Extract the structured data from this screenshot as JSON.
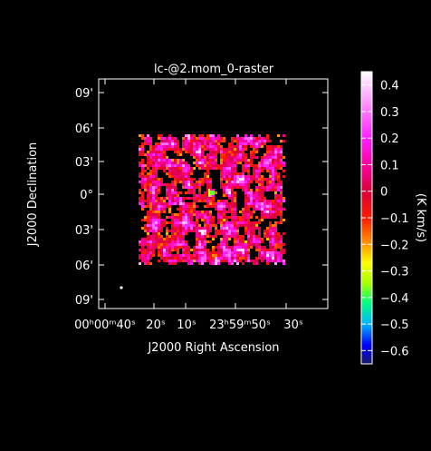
{
  "chart_data": {
    "type": "heatmap",
    "title": "lc-@2.mom_0-raster",
    "xlabel": "J2000 Right Ascension",
    "ylabel": "J2000 Declination",
    "x_ticks": [
      {
        "label": "00ʰ00ᵐ40ˢ"
      },
      {
        "label": "20ˢ"
      },
      {
        "label": "10ˢ"
      },
      {
        "label": "23ʰ59ᵐ50ˢ"
      },
      {
        "label": "30ˢ"
      }
    ],
    "y_ticks": [
      "09'",
      "06'",
      "03'",
      "0°",
      "03'",
      "06'",
      "09'"
    ],
    "colorbar": {
      "label": "(K km/s)",
      "range": [
        -0.65,
        0.45
      ],
      "ticks": [
        0.4,
        0.3,
        0.2,
        0.1,
        0,
        -0.1,
        -0.2,
        -0.3,
        -0.4,
        -0.5,
        -0.6
      ],
      "tick_labels": [
        "0.4",
        "0.3",
        "0.2",
        "0.1",
        "0",
        "−0.1",
        "−0.2",
        "−0.3",
        "−0.4",
        "−0.5",
        "−0.6"
      ],
      "colormap": [
        [
          -0.65,
          "#1a1a6a"
        ],
        [
          -0.58,
          "#0000ff"
        ],
        [
          -0.5,
          "#00b4ff"
        ],
        [
          -0.42,
          "#00ff80"
        ],
        [
          -0.35,
          "#a0ff00"
        ],
        [
          -0.27,
          "#ffff00"
        ],
        [
          -0.2,
          "#ff9900"
        ],
        [
          -0.1,
          "#ff1a00"
        ],
        [
          0.0,
          "#d8003a"
        ],
        [
          0.1,
          "#ff00a0"
        ],
        [
          0.2,
          "#ff22ff"
        ],
        [
          0.3,
          "#ff77ff"
        ],
        [
          0.38,
          "#ffc0ff"
        ],
        [
          0.45,
          "#ffffff"
        ]
      ]
    },
    "background_color": "#000000",
    "grid": false,
    "legend": "colorbar-right"
  }
}
